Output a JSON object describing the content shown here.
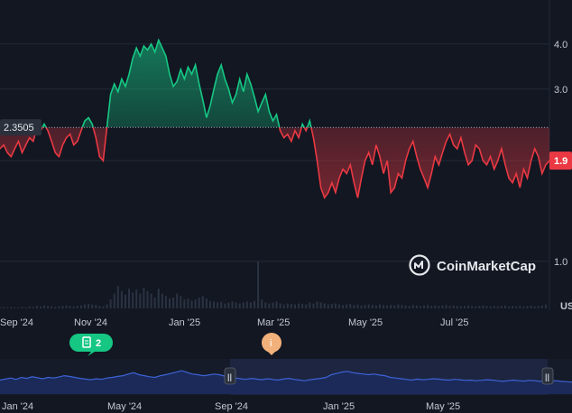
{
  "chart_data": {
    "type": "area",
    "scale": "log",
    "ylim": [
      0.85,
      5.0
    ],
    "y_ticks": [
      {
        "value": 4.0,
        "label": "4.0"
      },
      {
        "value": 3.0,
        "label": "3.0"
      },
      {
        "value": 1.0,
        "label": "1.0"
      }
    ],
    "baseline": {
      "value": 2.3505,
      "label": "2.3505"
    },
    "current": {
      "value": 1.9,
      "label": "1.9"
    },
    "x_tick_labels": [
      "Sep '24",
      "Nov '24",
      "Jan '25",
      "Mar '25",
      "May '25",
      "Jul '25"
    ],
    "currency_label": "US",
    "series": [
      {
        "values": [
          2.05,
          2.1,
          2.0,
          1.95,
          2.05,
          2.15,
          2.0,
          2.1,
          2.2,
          2.15,
          2.35,
          2.3,
          2.4,
          2.3,
          2.15,
          2.0,
          1.95,
          2.1,
          2.2,
          2.25,
          2.1,
          2.15,
          2.3,
          2.45,
          2.5,
          2.4,
          2.2,
          1.95,
          1.9,
          2.35,
          2.9,
          3.1,
          2.95,
          3.2,
          3.05,
          3.3,
          3.65,
          3.9,
          3.7,
          3.95,
          3.85,
          4.0,
          3.8,
          4.1,
          3.9,
          3.7,
          3.3,
          3.05,
          3.15,
          3.4,
          3.2,
          3.45,
          3.3,
          3.5,
          3.1,
          2.8,
          2.5,
          2.7,
          3.0,
          3.3,
          3.5,
          3.2,
          3.0,
          2.75,
          2.9,
          3.2,
          2.95,
          3.3,
          3.1,
          2.85,
          2.6,
          2.75,
          2.9,
          2.6,
          2.45,
          2.55,
          2.3,
          2.2,
          2.25,
          2.15,
          2.3,
          2.2,
          2.4,
          2.3,
          2.45,
          2.2,
          1.9,
          1.6,
          1.5,
          1.55,
          1.65,
          1.55,
          1.7,
          1.8,
          1.75,
          1.85,
          1.65,
          1.5,
          1.7,
          1.9,
          2.0,
          1.85,
          2.1,
          1.95,
          1.75,
          1.9,
          1.55,
          1.6,
          1.75,
          1.7,
          1.9,
          2.05,
          2.15,
          1.95,
          1.8,
          1.7,
          1.6,
          1.75,
          1.95,
          1.85,
          2.0,
          2.15,
          2.25,
          2.1,
          2.05,
          2.2,
          2.0,
          1.85,
          1.9,
          2.1,
          2.05,
          1.9,
          1.85,
          1.95,
          1.8,
          1.9,
          2.05,
          1.85,
          1.7,
          1.65,
          1.75,
          1.6,
          1.8,
          1.7,
          1.9,
          2.05,
          1.95,
          1.75,
          1.85,
          1.9
        ]
      }
    ],
    "volume": {
      "values": [
        0.02,
        0.03,
        0.02,
        0.03,
        0.02,
        0.02,
        0.03,
        0.02,
        0.04,
        0.03,
        0.05,
        0.04,
        0.06,
        0.05,
        0.04,
        0.03,
        0.04,
        0.05,
        0.06,
        0.05,
        0.04,
        0.05,
        0.06,
        0.08,
        0.09,
        0.08,
        0.07,
        0.05,
        0.04,
        0.08,
        0.18,
        0.3,
        0.45,
        0.35,
        0.28,
        0.4,
        0.32,
        0.38,
        0.3,
        0.42,
        0.35,
        0.3,
        0.22,
        0.4,
        0.3,
        0.25,
        0.2,
        0.22,
        0.3,
        0.25,
        0.18,
        0.2,
        0.16,
        0.18,
        0.22,
        0.25,
        0.2,
        0.15,
        0.14,
        0.12,
        0.13,
        0.1,
        0.12,
        0.14,
        0.12,
        0.1,
        0.12,
        0.14,
        0.12,
        0.15,
        0.95,
        0.18,
        0.12,
        0.1,
        0.12,
        0.14,
        0.1,
        0.08,
        0.1,
        0.09,
        0.08,
        0.1,
        0.09,
        0.08,
        0.12,
        0.1,
        0.14,
        0.12,
        0.1,
        0.08,
        0.09,
        0.1,
        0.08,
        0.07,
        0.08,
        0.09,
        0.07,
        0.08,
        0.06,
        0.07,
        0.08,
        0.07,
        0.06,
        0.08,
        0.07,
        0.06,
        0.07,
        0.06,
        0.08,
        0.07,
        0.06,
        0.05,
        0.07,
        0.06,
        0.05,
        0.06,
        0.07,
        0.05,
        0.06,
        0.05,
        0.06,
        0.07,
        0.05,
        0.06,
        0.05,
        0.04,
        0.05,
        0.06,
        0.05,
        0.04,
        0.05,
        0.06,
        0.05,
        0.04,
        0.05,
        0.04,
        0.05,
        0.06,
        0.04,
        0.05,
        0.04,
        0.05,
        0.04,
        0.05,
        0.06,
        0.04,
        0.05,
        0.06,
        0.08
      ]
    }
  },
  "events": [
    {
      "name": "news-marker",
      "label": "2",
      "color": "#16c784"
    },
    {
      "name": "info-marker",
      "label": "i",
      "color": "#f2b17a"
    }
  ],
  "watermark": {
    "text": "CoinMarketCap"
  },
  "navigator": {
    "x_tick_labels": [
      "Jan '24",
      "May '24",
      "Sep '24",
      "Jan '25",
      "May '25"
    ],
    "handle_glyph": "||",
    "values": [
      0.42,
      0.45,
      0.48,
      0.44,
      0.5,
      0.47,
      0.52,
      0.49,
      0.46,
      0.5,
      0.48,
      0.51,
      0.55,
      0.53,
      0.5,
      0.47,
      0.45,
      0.43,
      0.46,
      0.44,
      0.48,
      0.5,
      0.53,
      0.55,
      0.6,
      0.64,
      0.58,
      0.55,
      0.52,
      0.5,
      0.55,
      0.58,
      0.62,
      0.66,
      0.7,
      0.65,
      0.6,
      0.58,
      0.55,
      0.57,
      0.6,
      0.58,
      0.54,
      0.5,
      0.48,
      0.46,
      0.44,
      0.47,
      0.45,
      0.43,
      0.46,
      0.44,
      0.42,
      0.45,
      0.47,
      0.44,
      0.42,
      0.4,
      0.43,
      0.45,
      0.47,
      0.5,
      0.58,
      0.62,
      0.66,
      0.68,
      0.64,
      0.62,
      0.6,
      0.58,
      0.6,
      0.57,
      0.55,
      0.5,
      0.48,
      0.46,
      0.44,
      0.42,
      0.45,
      0.43,
      0.44,
      0.46,
      0.45,
      0.43,
      0.42,
      0.44,
      0.43,
      0.41,
      0.42,
      0.4,
      0.41,
      0.43,
      0.42,
      0.4,
      0.38,
      0.4,
      0.42,
      0.4,
      0.39,
      0.41,
      0.4,
      0.38,
      0.37,
      0.39,
      0.4,
      0.38,
      0.37,
      0.36
    ]
  },
  "colors": {
    "background": "#121722",
    "grid": "#232a36",
    "up": "#16c784",
    "down": "#ea3943",
    "axis_text": "#c3c7cf",
    "navigator_line": "#3d63d6",
    "navigator_fill": "#1b2a59"
  }
}
